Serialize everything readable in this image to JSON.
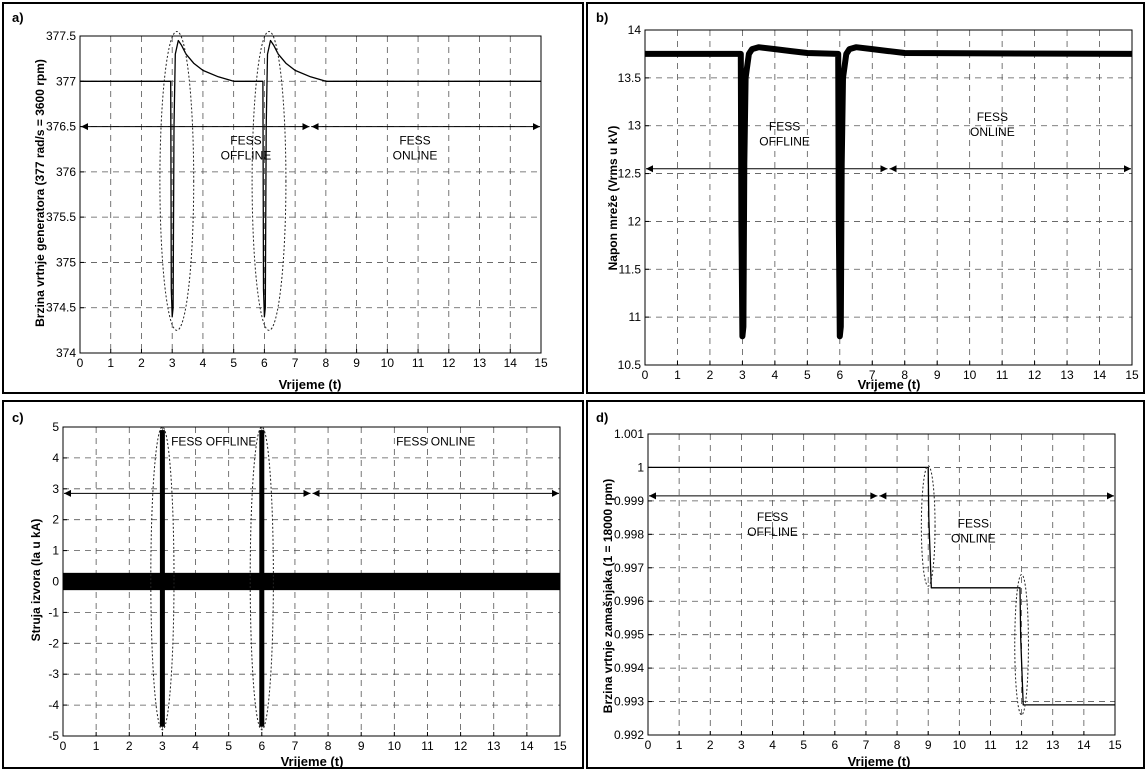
{
  "chart_data": [
    {
      "panel_label": "a)",
      "type": "line",
      "xlabel": "Vrijeme (t)",
      "ylabel": "Brzina vrtnje generatora (377 rad/s = 3600 rpm)",
      "xlim": [
        0,
        15
      ],
      "ylim": [
        374,
        377.5
      ],
      "x_ticks": [
        "0",
        "1",
        "2",
        "3",
        "4",
        "5",
        "6",
        "7",
        "8",
        "9",
        "10",
        "11",
        "12",
        "13",
        "14",
        "15"
      ],
      "y_ticks": [
        "374",
        "374.5",
        "375",
        "375.5",
        "376",
        "376.5",
        "377",
        "377.5"
      ],
      "grid": true,
      "series": [
        {
          "x": [
            0,
            2.95,
            2.97,
            3.0,
            3.03,
            3.06,
            3.1,
            3.2,
            3.3,
            3.45,
            3.7,
            4.0,
            4.5,
            5.0,
            5.95,
            5.97,
            6.0,
            6.03,
            6.06,
            6.1,
            6.2,
            6.3,
            6.45,
            6.7,
            7.0,
            7.5,
            8.0,
            15
          ],
          "y": [
            377,
            377,
            374.7,
            374.4,
            374.5,
            376.5,
            377.3,
            377.45,
            377.4,
            377.3,
            377.2,
            377.12,
            377.05,
            377.0,
            377.0,
            374.7,
            374.4,
            374.5,
            376.5,
            377.3,
            377.45,
            377.4,
            377.3,
            377.2,
            377.12,
            377.05,
            377.0,
            377.0
          ]
        }
      ],
      "ellipses": [
        {
          "cx": 3.15,
          "cy": 375.9,
          "rx": 0.55,
          "ry": 1.65
        },
        {
          "cx": 6.15,
          "cy": 375.9,
          "rx": 0.55,
          "ry": 1.65
        }
      ],
      "arrow_y": 376.5,
      "arrow_split": 7.5,
      "annotations": [
        {
          "lines": [
            "FESS",
            "OFFLINE"
          ],
          "x": 5.4,
          "y": 376.3
        },
        {
          "lines": [
            "FESS",
            "ONLINE"
          ],
          "x": 10.9,
          "y": 376.3
        }
      ]
    },
    {
      "panel_label": "b)",
      "type": "line",
      "xlabel": "Vrijeme (t)",
      "ylabel": "Napon mreže (Vrms u kV)",
      "xlim": [
        0,
        15
      ],
      "ylim": [
        10.5,
        14
      ],
      "x_ticks": [
        "0",
        "1",
        "2",
        "3",
        "4",
        "5",
        "6",
        "7",
        "8",
        "9",
        "10",
        "11",
        "12",
        "13",
        "14",
        "15"
      ],
      "y_ticks": [
        "10.5",
        "11",
        "11.5",
        "12",
        "12.5",
        "13",
        "13.5",
        "14"
      ],
      "grid": true,
      "series": [
        {
          "x": [
            0,
            2.95,
            2.97,
            3.0,
            3.03,
            3.06,
            3.1,
            3.2,
            3.3,
            3.5,
            4.0,
            4.5,
            5.0,
            5.95,
            5.97,
            6.0,
            6.03,
            6.06,
            6.1,
            6.2,
            6.3,
            6.5,
            7.0,
            7.5,
            8.0,
            15
          ],
          "y": [
            13.75,
            13.75,
            12.0,
            10.8,
            10.9,
            12.6,
            13.5,
            13.75,
            13.8,
            13.82,
            13.8,
            13.78,
            13.76,
            13.75,
            12.0,
            10.8,
            10.9,
            12.6,
            13.5,
            13.75,
            13.8,
            13.82,
            13.8,
            13.78,
            13.76,
            13.75
          ]
        }
      ],
      "ellipses": [],
      "arrow_y": 12.55,
      "arrow_split": 7.5,
      "annotations": [
        {
          "lines": [
            "FESS",
            "OFFLINE"
          ],
          "x": 4.3,
          "y": 12.95
        },
        {
          "lines": [
            "FESS",
            "ONLINE"
          ],
          "x": 10.7,
          "y": 13.05
        }
      ]
    },
    {
      "panel_label": "c)",
      "type": "line",
      "xlabel": "Vrijeme (t)",
      "ylabel": "Struja izvora (Ia u kA)",
      "xlim": [
        0,
        15
      ],
      "ylim": [
        -5,
        5
      ],
      "x_ticks": [
        "0",
        "1",
        "2",
        "3",
        "4",
        "5",
        "6",
        "7",
        "8",
        "9",
        "10",
        "11",
        "12",
        "13",
        "14",
        "15"
      ],
      "y_ticks": [
        "-5",
        "-4",
        "-3",
        "-2",
        "-1",
        "0",
        "1",
        "2",
        "3",
        "4",
        "5"
      ],
      "grid": true,
      "band": {
        "half_amplitude": 0.28,
        "excursions": [
          {
            "x": 3.0,
            "min": -4.7,
            "max": 4.9
          },
          {
            "x": 6.0,
            "min": -4.7,
            "max": 4.9
          }
        ]
      },
      "ellipses": [
        {
          "cx": 3.0,
          "cy": 0.1,
          "rx": 0.35,
          "ry": 4.9
        },
        {
          "cx": 6.0,
          "cy": 0.1,
          "rx": 0.35,
          "ry": 4.9
        }
      ],
      "arrow_y": 2.85,
      "arrow_split": 7.5,
      "annotations": [
        {
          "lines": [
            "FESS OFFLINE"
          ],
          "x": 4.55,
          "y": 4.4
        },
        {
          "lines": [
            "FESS ONLINE"
          ],
          "x": 11.25,
          "y": 4.4
        }
      ]
    },
    {
      "panel_label": "d)",
      "type": "line",
      "xlabel": "Vrijeme (t)",
      "ylabel": "Brzina vrtnje zamašnjaka (1 = 18000 rpm)",
      "xlim": [
        0,
        15
      ],
      "ylim": [
        0.992,
        1.001
      ],
      "x_ticks": [
        "0",
        "1",
        "2",
        "3",
        "4",
        "5",
        "6",
        "7",
        "8",
        "9",
        "10",
        "11",
        "12",
        "13",
        "14",
        "15"
      ],
      "y_ticks": [
        "0.992",
        "0.993",
        "0.994",
        "0.995",
        "0.996",
        "0.997",
        "0.998",
        "0.999",
        "1",
        "1.001"
      ],
      "grid": true,
      "series": [
        {
          "x": [
            0,
            9.0,
            9.02,
            9.1,
            11.95,
            11.97,
            12.05,
            15
          ],
          "y": [
            1.0,
            1.0,
            0.9985,
            0.9964,
            0.9964,
            0.9949,
            0.9929,
            0.9929
          ]
        }
      ],
      "ellipses": [
        {
          "cx": 9.0,
          "cy": 0.99825,
          "rx": 0.22,
          "ry": 0.0018
        },
        {
          "cx": 12.0,
          "cy": 0.9947,
          "rx": 0.22,
          "ry": 0.0021
        }
      ],
      "arrow_y": 0.99915,
      "arrow_split": 7.4,
      "annotations": [
        {
          "lines": [
            "FESS",
            "OFFLINE"
          ],
          "x": 4.0,
          "y": 0.9984
        },
        {
          "lines": [
            "FESS",
            "ONLINE"
          ],
          "x": 10.45,
          "y": 0.9982
        }
      ]
    }
  ]
}
